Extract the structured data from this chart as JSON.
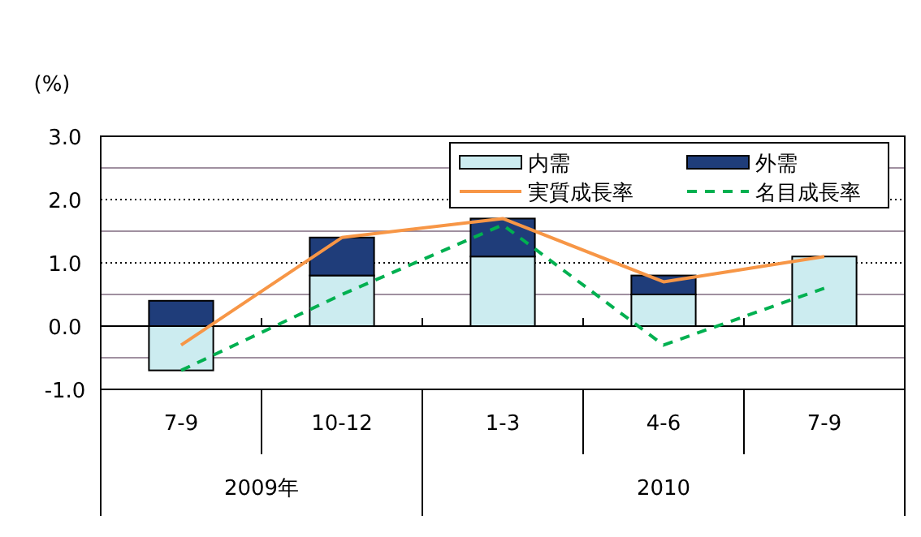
{
  "chart_data": {
    "type": "bar",
    "stacked": true,
    "ylabel": "(%)",
    "categories": [
      "7-9",
      "10-12",
      "1-3",
      "4-6",
      "7-9"
    ],
    "series": [
      {
        "name": "内需",
        "color": "#ccecf0",
        "values": [
          -0.7,
          0.8,
          1.1,
          0.5,
          1.1
        ]
      },
      {
        "name": "外需",
        "color": "#1f3d7a",
        "values": [
          0.4,
          0.6,
          0.6,
          0.3,
          0.0
        ]
      },
      {
        "name": "実質成長率",
        "type": "line",
        "color": "#f79646",
        "line_style": "solid",
        "values": [
          -0.3,
          1.4,
          1.7,
          0.7,
          1.1
        ]
      },
      {
        "name": "名目成長率",
        "type": "line",
        "color": "#00b050",
        "line_style": "dashed",
        "values": [
          -0.7,
          0.5,
          1.6,
          -0.3,
          0.6
        ]
      }
    ],
    "ylim": [
      -1.0,
      3.0
    ],
    "yticks": [
      {
        "value": -1,
        "label": "-1.0"
      },
      {
        "value": -0.5,
        "label": null
      },
      {
        "value": 0,
        "label": "0.0"
      },
      {
        "value": 0.5,
        "label": null
      },
      {
        "value": 1,
        "label": "1.0"
      },
      {
        "value": 1.5,
        "label": null
      },
      {
        "value": 2,
        "label": "2.0"
      },
      {
        "value": 2.5,
        "label": null
      },
      {
        "value": 3,
        "label": "3.0"
      }
    ],
    "grid": "y",
    "legend": "top right",
    "annotations": [
      "2009年",
      "2010"
    ]
  }
}
